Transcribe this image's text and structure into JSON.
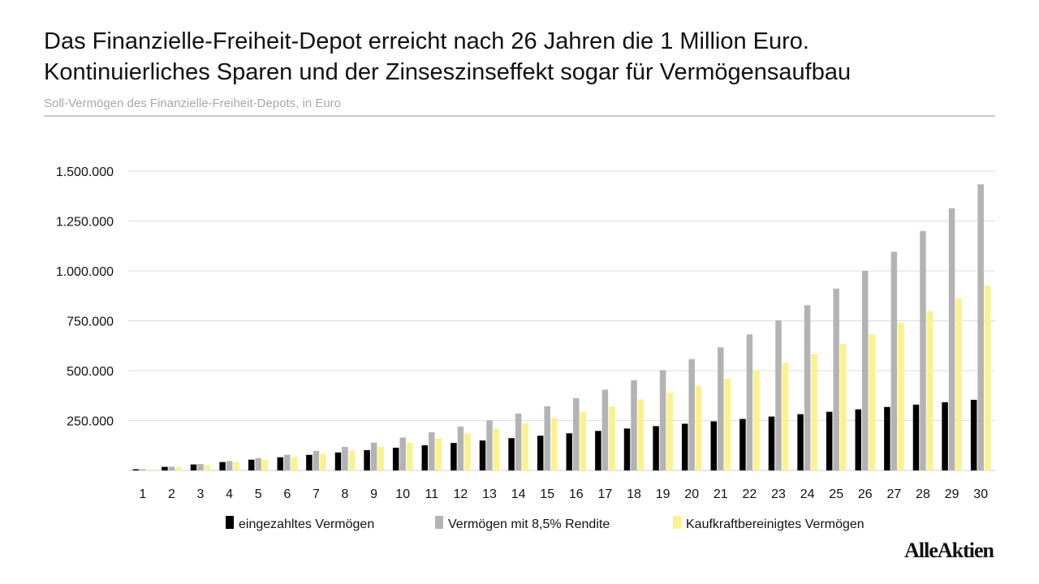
{
  "header": {
    "title_line1": "Das Finanzielle-Freiheit-Depot erreicht nach 26 Jahren die 1 Million Euro.",
    "title_line2": "Kontinuierliches Sparen und der Zinseszinseffekt sogar für Vermögensaufbau",
    "subtitle": "Soll-Vermögen des Finanzielle-Freiheit-Depots, in Euro"
  },
  "brand": "AlleAktien",
  "chart_data": {
    "type": "bar",
    "categories": [
      "1",
      "2",
      "3",
      "4",
      "5",
      "6",
      "7",
      "8",
      "9",
      "10",
      "11",
      "12",
      "13",
      "14",
      "15",
      "16",
      "17",
      "18",
      "19",
      "20",
      "21",
      "22",
      "23",
      "24",
      "25",
      "26",
      "27",
      "28",
      "29",
      "30"
    ],
    "ylim": [
      0,
      1500000
    ],
    "yticks": [
      {
        "value": 250000,
        "label": "250.000"
      },
      {
        "value": 500000,
        "label": "500.000"
      },
      {
        "value": 750000,
        "label": "750.000"
      },
      {
        "value": 1000000,
        "label": "1.000.000"
      },
      {
        "value": 1250000,
        "label": "1.250.000"
      },
      {
        "value": 1500000,
        "label": "1.500.000"
      }
    ],
    "grid": true,
    "legend_position": "bottom",
    "series": [
      {
        "name": "eingezahltes Vermögen",
        "color": "#000000",
        "values": [
          6000,
          18000,
          30000,
          42000,
          54000,
          66000,
          78000,
          90000,
          102000,
          114000,
          126000,
          138000,
          150000,
          162000,
          174000,
          186000,
          198000,
          210000,
          222000,
          234000,
          246000,
          258000,
          270000,
          282000,
          294000,
          306000,
          318000,
          330000,
          342000,
          354000
        ]
      },
      {
        "name": "Vermögen mit 8,5% Rendite",
        "color": "#b3b3b3",
        "values": [
          6000,
          19000,
          32000,
          47000,
          62000,
          79000,
          98000,
          118000,
          140000,
          165000,
          191000,
          220000,
          251000,
          285000,
          322000,
          362000,
          405000,
          452000,
          503000,
          558000,
          617000,
          682000,
          752000,
          828000,
          911000,
          1000000,
          1096000,
          1200000,
          1314000,
          1434000
        ]
      },
      {
        "name": "Kaufkraftbereinigtes Vermögen",
        "color": "#fbf28e",
        "values": [
          5000,
          17000,
          28000,
          42000,
          54000,
          68000,
          84000,
          100000,
          119000,
          139000,
          161000,
          185000,
          209000,
          235000,
          263000,
          292000,
          322000,
          356000,
          389000,
          424000,
          460000,
          499000,
          539000,
          583000,
          633000,
          683000,
          739000,
          798000,
          863000,
          926000
        ]
      }
    ]
  }
}
